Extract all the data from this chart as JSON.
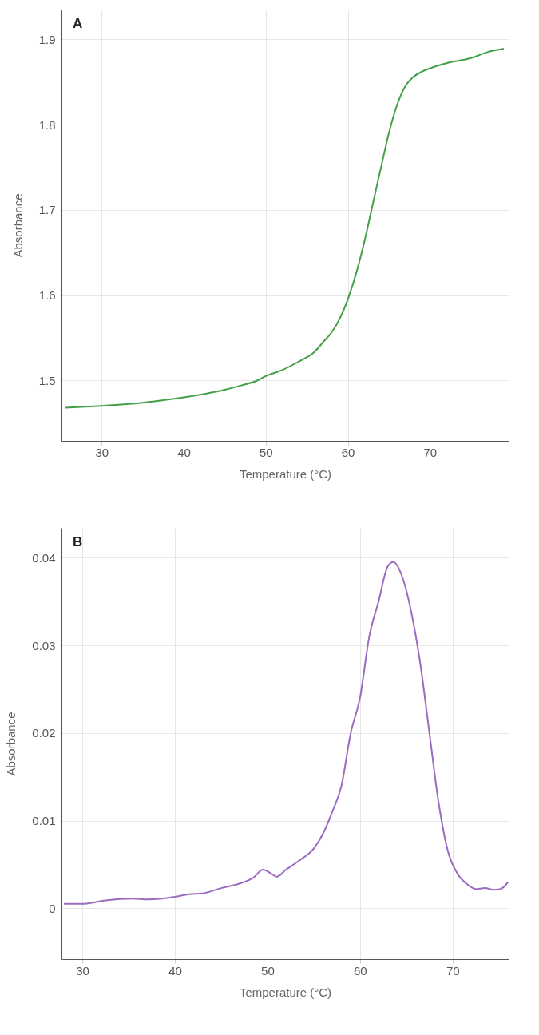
{
  "chart_data": [
    {
      "type": "line",
      "xlabel": "Temperature (°C)",
      "ylabel": "Absorbance",
      "annotations": [
        "A"
      ],
      "grid": true,
      "xlim": [
        25.1,
        79.6
      ],
      "ylim": [
        1.429,
        1.935
      ],
      "xticks": [
        30,
        40,
        50,
        60,
        70
      ],
      "yticks": [
        1.5,
        1.6,
        1.7,
        1.8,
        1.9
      ],
      "x": [
        25.5,
        28,
        30,
        33,
        36,
        40,
        43,
        45,
        47,
        49,
        50,
        52,
        54,
        56,
        57,
        58,
        59,
        60,
        61,
        62,
        63,
        64,
        65,
        66,
        67,
        68,
        69,
        70,
        72,
        75,
        77,
        79
      ],
      "series": [
        {
          "color": "#43a047",
          "values": [
            1.468,
            1.469,
            1.47,
            1.472,
            1.475,
            1.48,
            1.485,
            1.489,
            1.494,
            1.5,
            1.505,
            1.512,
            1.522,
            1.534,
            1.545,
            1.556,
            1.572,
            1.595,
            1.625,
            1.662,
            1.705,
            1.748,
            1.79,
            1.823,
            1.845,
            1.856,
            1.862,
            1.866,
            1.872,
            1.878,
            1.885,
            1.889
          ]
        }
      ]
    },
    {
      "type": "line",
      "xlabel": "Temperature (°C)",
      "ylabel": "Absorbance",
      "annotations": [
        "B"
      ],
      "grid": true,
      "xlim": [
        27.75,
        76.06
      ],
      "ylim": [
        -0.0058,
        0.0434
      ],
      "xticks": [
        30,
        40,
        50,
        60,
        70
      ],
      "yticks": [
        0,
        0.01,
        0.02,
        0.03,
        0.04
      ],
      "x": [
        28,
        30,
        32.5,
        35.5,
        37,
        40,
        41.5,
        43,
        45,
        47.5,
        48.5,
        49.5,
        50.5,
        51,
        52,
        53.5,
        55,
        56,
        57,
        58,
        59,
        60,
        61,
        62,
        63,
        63.6,
        64.5,
        65.5,
        66.5,
        67.5,
        68.5,
        69.5,
        70.5,
        71.5,
        72.5,
        73.5,
        74.5,
        75.2,
        76
      ],
      "series": [
        {
          "color": "#9b6bbf",
          "values": [
            0.0005,
            0.0005,
            0.0009,
            0.0011,
            0.001,
            0.0013,
            0.0016,
            0.0017,
            0.0023,
            0.003,
            0.0035,
            0.0044,
            0.0039,
            0.0036,
            0.0044,
            0.0055,
            0.0068,
            0.0085,
            0.011,
            0.014,
            0.02,
            0.024,
            0.031,
            0.035,
            0.039,
            0.0395,
            0.038,
            0.034,
            0.028,
            0.02,
            0.012,
            0.0065,
            0.004,
            0.0028,
            0.0022,
            0.0023,
            0.0021,
            0.0022,
            0.003
          ]
        }
      ]
    }
  ]
}
